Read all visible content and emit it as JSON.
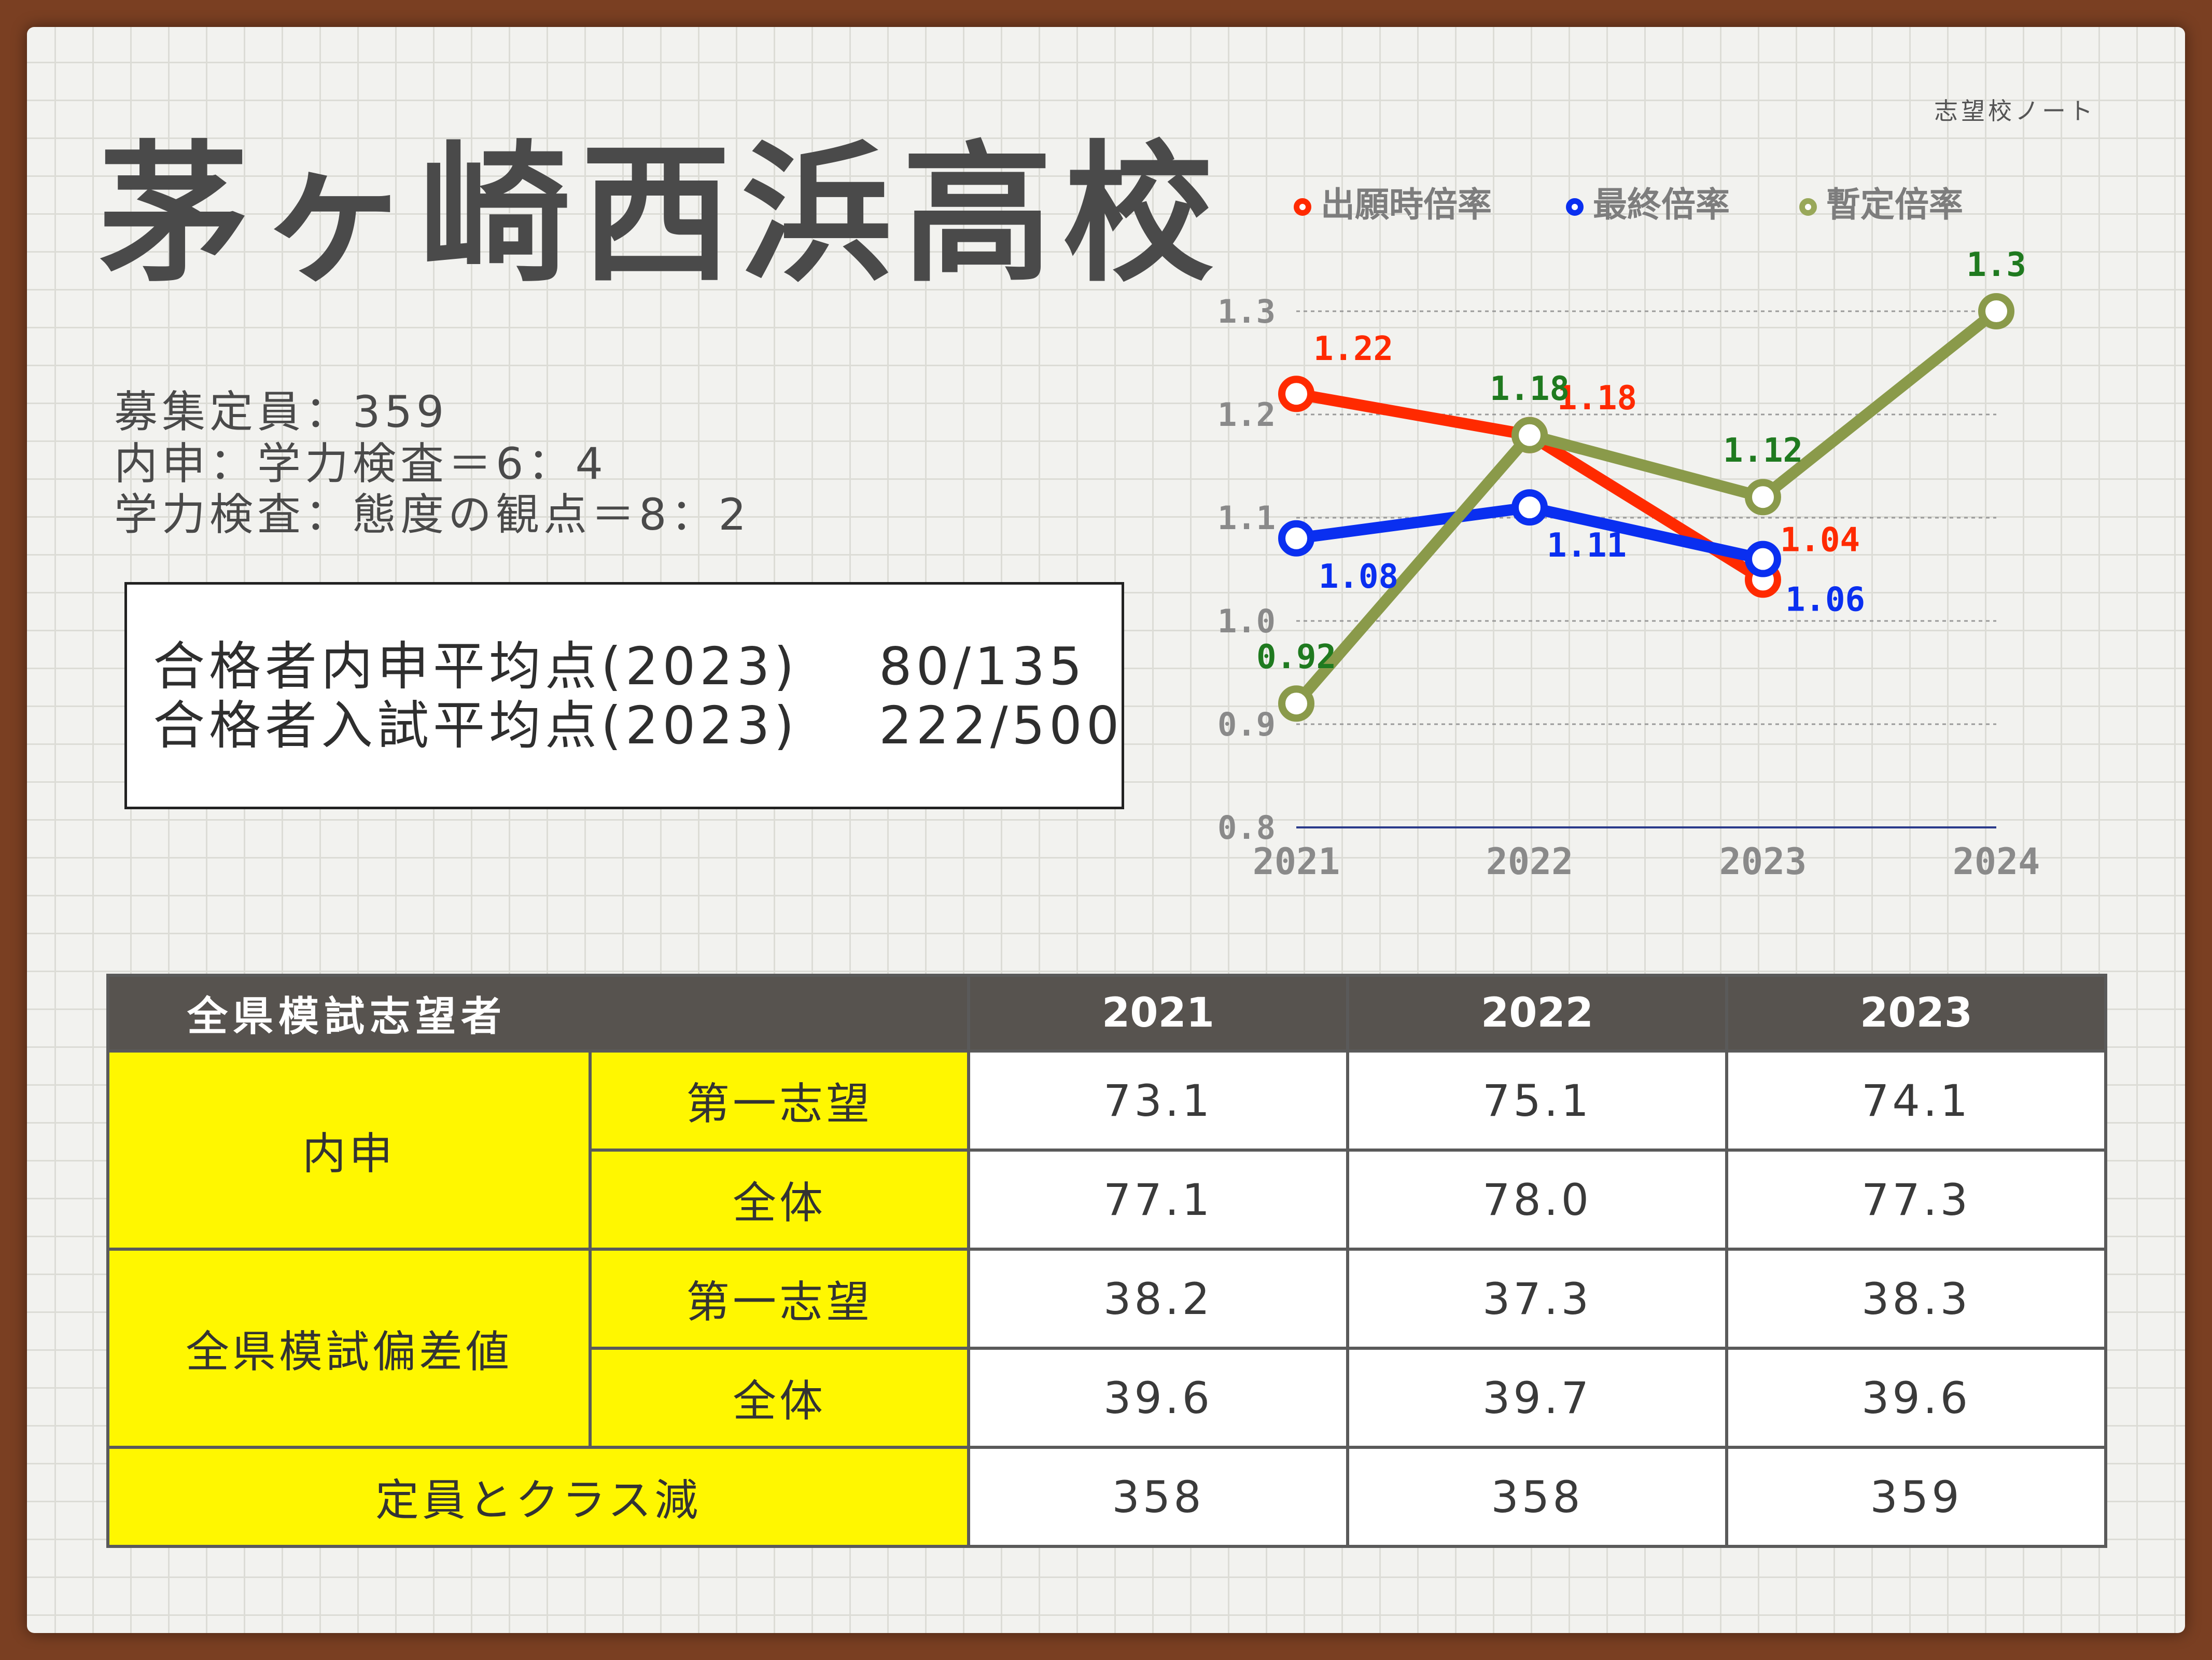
{
  "header": {
    "brand": "志望校ノート",
    "school_name": "茅ヶ崎西浜高校"
  },
  "info": [
    "募集定員：359",
    "内申：学力検査＝6：4",
    "学力検査：態度の観点＝8：2"
  ],
  "averages": [
    {
      "label": "合格者内申平均点(2023)",
      "value": "80/135"
    },
    {
      "label": "合格者入試平均点(2023)",
      "value": "222/500"
    }
  ],
  "colors": {
    "application": "#ff2a00",
    "final": "#0a2ff0",
    "provisional": "#99a85a",
    "yellow": "#fff700",
    "header": "#57534f"
  },
  "chart_data": {
    "type": "line",
    "categories": [
      "2021",
      "2022",
      "2023",
      "2024"
    ],
    "ylim": [
      0.8,
      1.3
    ],
    "yticks": [
      "0.8",
      "0.9",
      "1.0",
      "1.1",
      "1.2",
      "1.3"
    ],
    "legend_position": "top",
    "series": [
      {
        "name": "出願時倍率",
        "color": "#ff2a00",
        "values": [
          1.22,
          1.18,
          1.04,
          null
        ],
        "labels": [
          "1.22",
          "1.18",
          "1.04",
          ""
        ]
      },
      {
        "name": "最終倍率",
        "color": "#0a2ff0",
        "values": [
          1.08,
          1.11,
          1.06,
          null
        ],
        "labels": [
          "1.08",
          "1.11",
          "1.06",
          ""
        ]
      },
      {
        "name": "暫定倍率",
        "color": "#8a9a4a",
        "values": [
          0.92,
          1.18,
          1.12,
          1.3
        ],
        "labels": [
          "0.92",
          "1.18",
          "1.12",
          "1.3"
        ]
      }
    ]
  },
  "table": {
    "corner": "全県模試志望者",
    "years": [
      "2021",
      "2022",
      "2023"
    ],
    "groups": [
      {
        "name": "内申",
        "rows": [
          {
            "label": "第一志望",
            "values": [
              "73.1",
              "75.1",
              "74.1"
            ]
          },
          {
            "label": "全体",
            "values": [
              "77.1",
              "78.0",
              "77.3"
            ]
          }
        ]
      },
      {
        "name": "全県模試偏差値",
        "rows": [
          {
            "label": "第一志望",
            "values": [
              "38.2",
              "37.3",
              "38.3"
            ]
          },
          {
            "label": "全体",
            "values": [
              "39.6",
              "39.7",
              "39.6"
            ]
          }
        ]
      }
    ],
    "capacity": {
      "label": "定員とクラス減",
      "values": [
        "358",
        "358",
        "359"
      ]
    }
  }
}
